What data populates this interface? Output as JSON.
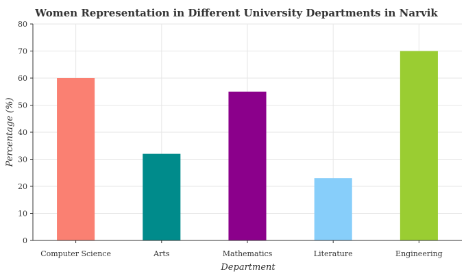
{
  "chart_data": {
    "type": "bar",
    "title": "Women Representation in Different University Departments in Narvik",
    "xlabel": "Department",
    "ylabel": "Percentage (%)",
    "categories": [
      "Computer Science",
      "Arts",
      "Mathematics",
      "Literature",
      "Engineering"
    ],
    "values": [
      60,
      32,
      55,
      23,
      70
    ],
    "colors": [
      "#fa8072",
      "#008b8b",
      "#8b008b",
      "#87cefa",
      "#9acd32"
    ],
    "ylim": [
      0,
      80
    ],
    "yticks": [
      0,
      10,
      20,
      30,
      40,
      50,
      60,
      70,
      80
    ],
    "grid": true
  }
}
